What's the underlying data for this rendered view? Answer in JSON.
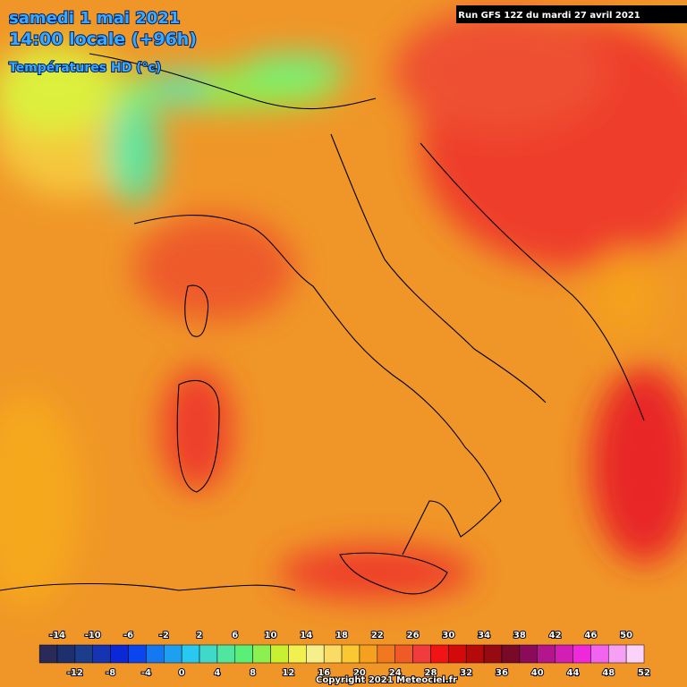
{
  "header": {
    "title": "samedi 1 mai 2021",
    "time": "14:00 locale (+96h)",
    "variable": "Températures HD (°c)",
    "run": "Run GFS 12Z du mardi 27 avril 2021"
  },
  "legend": {
    "colors": [
      "#2a2a5a",
      "#1e2f6e",
      "#1c3c8c",
      "#1434b4",
      "#0a28d8",
      "#0a46f0",
      "#1478f0",
      "#1ea0f0",
      "#28c8f0",
      "#40d8c8",
      "#50e6a0",
      "#5af078",
      "#8cf050",
      "#c8f032",
      "#f0f050",
      "#f5f08c",
      "#fadc64",
      "#fac832",
      "#f5a01e",
      "#f0781e",
      "#f05a28",
      "#f03c3c",
      "#f01414",
      "#d20a0a",
      "#b40a0a",
      "#960a14",
      "#780a28",
      "#8c0a5a",
      "#b4148c",
      "#d21eb4",
      "#f028dc",
      "#f064f0",
      "#f5a0f5",
      "#fad2fa"
    ],
    "top_labels": [
      -14,
      -10,
      -6,
      -2,
      2,
      6,
      10,
      14,
      18,
      22,
      26,
      30,
      34,
      38,
      42,
      46,
      50
    ],
    "bottom_labels": [
      -12,
      -8,
      -4,
      0,
      4,
      8,
      12,
      16,
      20,
      24,
      28,
      32,
      36,
      40,
      44,
      48,
      52
    ]
  },
  "footer": {
    "copyright": "Copyright 2021 Meteociel.fr"
  }
}
